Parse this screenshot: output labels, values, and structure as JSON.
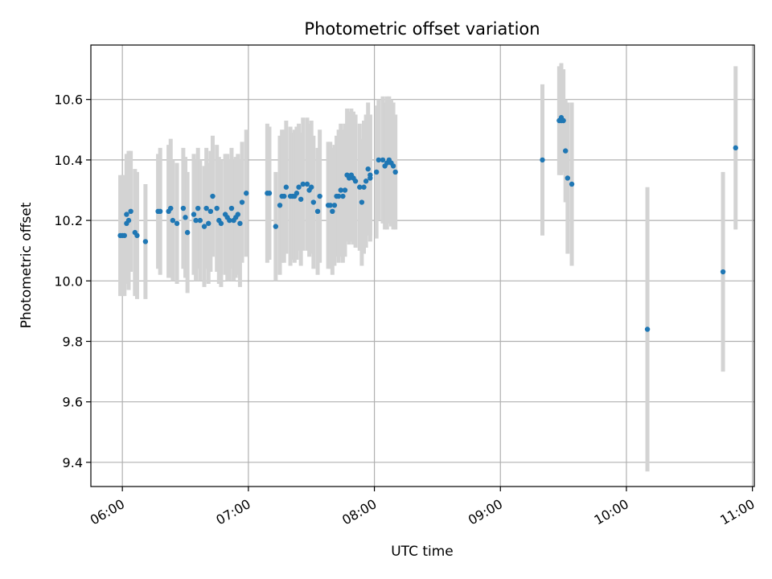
{
  "chart_data": {
    "type": "scatter",
    "title": "Photometric offset variation",
    "xlabel": "UTC time",
    "ylabel": "Photometric offset",
    "x_unit": "UTC time (HH:MM)",
    "xlim": [
      "05:45",
      "11:00"
    ],
    "ylim": [
      9.32,
      10.78
    ],
    "x_ticks": [
      "06:00",
      "07:00",
      "08:00",
      "09:00",
      "10:00",
      "11:00"
    ],
    "y_ticks": [
      "9.4",
      "9.6",
      "9.8",
      "10.0",
      "10.2",
      "10.4",
      "10.6"
    ],
    "grid": true,
    "colors": {
      "marker": "#1f77b4",
      "errorbar": "#d3d3d3",
      "grid": "#b0b0b0",
      "axes": "#000000"
    },
    "points": [
      {
        "x": "05:59",
        "y": 10.15,
        "err": 0.2
      },
      {
        "x": "06:00",
        "y": 10.15,
        "err": 0.2
      },
      {
        "x": "06:01",
        "y": 10.15,
        "err": 0.2
      },
      {
        "x": "06:02",
        "y": 10.19,
        "err": 0.2
      },
      {
        "x": "06:02",
        "y": 10.22,
        "err": 0.2
      },
      {
        "x": "06:03",
        "y": 10.2,
        "err": 0.23
      },
      {
        "x": "06:04",
        "y": 10.23,
        "err": 0.2
      },
      {
        "x": "06:06",
        "y": 10.16,
        "err": 0.21
      },
      {
        "x": "06:07",
        "y": 10.15,
        "err": 0.21
      },
      {
        "x": "06:11",
        "y": 10.13,
        "err": 0.19
      },
      {
        "x": "06:17",
        "y": 10.23,
        "err": 0.19
      },
      {
        "x": "06:18",
        "y": 10.23,
        "err": 0.21
      },
      {
        "x": "06:22",
        "y": 10.23,
        "err": 0.22
      },
      {
        "x": "06:23",
        "y": 10.24,
        "err": 0.23
      },
      {
        "x": "06:24",
        "y": 10.2,
        "err": 0.2
      },
      {
        "x": "06:26",
        "y": 10.19,
        "err": 0.2
      },
      {
        "x": "06:29",
        "y": 10.24,
        "err": 0.2
      },
      {
        "x": "06:30",
        "y": 10.21,
        "err": 0.2
      },
      {
        "x": "06:31",
        "y": 10.16,
        "err": 0.2
      },
      {
        "x": "06:34",
        "y": 10.22,
        "err": 0.2
      },
      {
        "x": "06:35",
        "y": 10.2,
        "err": 0.2
      },
      {
        "x": "06:36",
        "y": 10.24,
        "err": 0.2
      },
      {
        "x": "06:37",
        "y": 10.2,
        "err": 0.2
      },
      {
        "x": "06:39",
        "y": 10.18,
        "err": 0.2
      },
      {
        "x": "06:40",
        "y": 10.24,
        "err": 0.2
      },
      {
        "x": "06:41",
        "y": 10.19,
        "err": 0.2
      },
      {
        "x": "06:42",
        "y": 10.23,
        "err": 0.2
      },
      {
        "x": "06:43",
        "y": 10.28,
        "err": 0.2
      },
      {
        "x": "06:45",
        "y": 10.24,
        "err": 0.21
      },
      {
        "x": "06:46",
        "y": 10.2,
        "err": 0.21
      },
      {
        "x": "06:47",
        "y": 10.19,
        "err": 0.21
      },
      {
        "x": "06:49",
        "y": 10.22,
        "err": 0.2
      },
      {
        "x": "06:50",
        "y": 10.21,
        "err": 0.21
      },
      {
        "x": "06:51",
        "y": 10.2,
        "err": 0.2
      },
      {
        "x": "06:52",
        "y": 10.24,
        "err": 0.2
      },
      {
        "x": "06:53",
        "y": 10.2,
        "err": 0.2
      },
      {
        "x": "06:54",
        "y": 10.21,
        "err": 0.2
      },
      {
        "x": "06:55",
        "y": 10.22,
        "err": 0.2
      },
      {
        "x": "06:56",
        "y": 10.19,
        "err": 0.21
      },
      {
        "x": "06:57",
        "y": 10.26,
        "err": 0.2
      },
      {
        "x": "06:59",
        "y": 10.29,
        "err": 0.21
      },
      {
        "x": "07:09",
        "y": 10.29,
        "err": 0.23
      },
      {
        "x": "07:10",
        "y": 10.29,
        "err": 0.22
      },
      {
        "x": "07:13",
        "y": 10.18,
        "err": 0.18
      },
      {
        "x": "07:15",
        "y": 10.25,
        "err": 0.23
      },
      {
        "x": "07:16",
        "y": 10.28,
        "err": 0.22
      },
      {
        "x": "07:17",
        "y": 10.28,
        "err": 0.22
      },
      {
        "x": "07:18",
        "y": 10.31,
        "err": 0.22
      },
      {
        "x": "07:20",
        "y": 10.28,
        "err": 0.23
      },
      {
        "x": "07:21",
        "y": 10.28,
        "err": 0.21
      },
      {
        "x": "07:22",
        "y": 10.28,
        "err": 0.22
      },
      {
        "x": "07:23",
        "y": 10.29,
        "err": 0.22
      },
      {
        "x": "07:24",
        "y": 10.31,
        "err": 0.21
      },
      {
        "x": "07:25",
        "y": 10.27,
        "err": 0.22
      },
      {
        "x": "07:26",
        "y": 10.32,
        "err": 0.22
      },
      {
        "x": "07:28",
        "y": 10.32,
        "err": 0.22
      },
      {
        "x": "07:29",
        "y": 10.3,
        "err": 0.22
      },
      {
        "x": "07:30",
        "y": 10.31,
        "err": 0.22
      },
      {
        "x": "07:31",
        "y": 10.26,
        "err": 0.22
      },
      {
        "x": "07:33",
        "y": 10.23,
        "err": 0.21
      },
      {
        "x": "07:34",
        "y": 10.28,
        "err": 0.22
      },
      {
        "x": "07:38",
        "y": 10.25,
        "err": 0.21
      },
      {
        "x": "07:39",
        "y": 10.25,
        "err": 0.21
      },
      {
        "x": "07:40",
        "y": 10.23,
        "err": 0.21
      },
      {
        "x": "07:41",
        "y": 10.25,
        "err": 0.2
      },
      {
        "x": "07:42",
        "y": 10.28,
        "err": 0.2
      },
      {
        "x": "07:43",
        "y": 10.28,
        "err": 0.22
      },
      {
        "x": "07:44",
        "y": 10.3,
        "err": 0.22
      },
      {
        "x": "07:45",
        "y": 10.28,
        "err": 0.22
      },
      {
        "x": "07:46",
        "y": 10.3,
        "err": 0.22
      },
      {
        "x": "07:47",
        "y": 10.35,
        "err": 0.22
      },
      {
        "x": "07:48",
        "y": 10.34,
        "err": 0.22
      },
      {
        "x": "07:49",
        "y": 10.35,
        "err": 0.22
      },
      {
        "x": "07:50",
        "y": 10.34,
        "err": 0.22
      },
      {
        "x": "07:51",
        "y": 10.33,
        "err": 0.22
      },
      {
        "x": "07:53",
        "y": 10.31,
        "err": 0.21
      },
      {
        "x": "07:54",
        "y": 10.26,
        "err": 0.21
      },
      {
        "x": "07:55",
        "y": 10.31,
        "err": 0.22
      },
      {
        "x": "07:56",
        "y": 10.33,
        "err": 0.22
      },
      {
        "x": "07:57",
        "y": 10.37,
        "err": 0.22
      },
      {
        "x": "07:58",
        "y": 10.35,
        "err": 0.2
      },
      {
        "x": "07:58",
        "y": 10.34,
        "err": 0.21
      },
      {
        "x": "08:01",
        "y": 10.36,
        "err": 0.22
      },
      {
        "x": "08:02",
        "y": 10.4,
        "err": 0.2
      },
      {
        "x": "08:04",
        "y": 10.4,
        "err": 0.21
      },
      {
        "x": "08:05",
        "y": 10.38,
        "err": 0.21
      },
      {
        "x": "08:06",
        "y": 10.39,
        "err": 0.22
      },
      {
        "x": "08:07",
        "y": 10.4,
        "err": 0.21
      },
      {
        "x": "08:08",
        "y": 10.39,
        "err": 0.21
      },
      {
        "x": "08:09",
        "y": 10.38,
        "err": 0.21
      },
      {
        "x": "08:10",
        "y": 10.36,
        "err": 0.19
      },
      {
        "x": "09:20",
        "y": 10.4,
        "err": 0.25
      },
      {
        "x": "09:28",
        "y": 10.53,
        "err": 0.18
      },
      {
        "x": "09:29",
        "y": 10.53,
        "err": 0.18
      },
      {
        "x": "09:29",
        "y": 10.54,
        "err": 0.18
      },
      {
        "x": "09:30",
        "y": 10.53,
        "err": 0.17
      },
      {
        "x": "09:31",
        "y": 10.43,
        "err": 0.17
      },
      {
        "x": "09:32",
        "y": 10.34,
        "err": 0.25
      },
      {
        "x": "09:34",
        "y": 10.32,
        "err": 0.27
      },
      {
        "x": "10:10",
        "y": 9.84,
        "err": 0.47
      },
      {
        "x": "10:46",
        "y": 10.03,
        "err": 0.33
      },
      {
        "x": "10:52",
        "y": 10.44,
        "err": 0.27
      }
    ]
  }
}
